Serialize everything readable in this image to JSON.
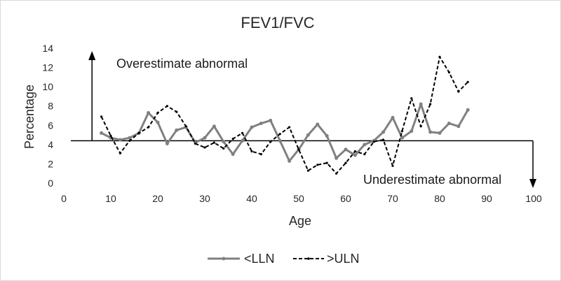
{
  "chart_data": {
    "type": "line",
    "title": "FEV1/FVC",
    "xlabel": "Age",
    "ylabel": "Percentage",
    "xlim": [
      0,
      100
    ],
    "ylim": [
      0,
      14
    ],
    "xticks": [
      0,
      10,
      20,
      30,
      40,
      50,
      60,
      70,
      80,
      90,
      100
    ],
    "yticks": [
      0,
      2,
      4,
      6,
      8,
      10,
      12,
      14
    ],
    "grid": false,
    "legend_position": "bottom",
    "reference_line": 4.4,
    "annotations": [
      {
        "text": "Overestimate abnormal",
        "arrow": "up"
      },
      {
        "text": "Underestimate abnormal",
        "arrow": "down"
      }
    ],
    "series": [
      {
        "name": "<LLN",
        "style": "solid",
        "color": "#808080",
        "x": [
          8,
          10,
          12,
          14,
          16,
          18,
          20,
          22,
          24,
          26,
          28,
          30,
          32,
          34,
          36,
          38,
          40,
          42,
          44,
          46,
          48,
          50,
          52,
          54,
          56,
          58,
          60,
          62,
          64,
          66,
          68,
          70,
          72,
          74,
          76,
          78,
          80,
          82,
          84,
          86
        ],
        "y": [
          5.2,
          4.7,
          4.5,
          4.7,
          5.2,
          7.3,
          6.3,
          4.1,
          5.5,
          5.8,
          4.2,
          4.7,
          5.9,
          4.3,
          3.0,
          4.4,
          5.8,
          6.2,
          6.5,
          4.4,
          2.3,
          3.5,
          5.0,
          6.1,
          4.9,
          2.6,
          3.5,
          2.9,
          4.0,
          4.4,
          5.3,
          6.8,
          4.7,
          5.4,
          8.2,
          5.3,
          5.2,
          6.2,
          5.9,
          7.6
        ]
      },
      {
        "name": ">ULN",
        "style": "dashed",
        "color": "#000000",
        "x": [
          8,
          10,
          12,
          14,
          16,
          18,
          20,
          22,
          24,
          26,
          28,
          30,
          32,
          34,
          36,
          38,
          40,
          42,
          44,
          46,
          48,
          50,
          52,
          54,
          56,
          58,
          60,
          62,
          64,
          66,
          68,
          70,
          72,
          74,
          76,
          78,
          80,
          82,
          84,
          86
        ],
        "y": [
          6.9,
          4.9,
          3.1,
          4.4,
          5.2,
          5.8,
          7.3,
          8.0,
          7.4,
          5.9,
          4.1,
          3.7,
          4.2,
          3.6,
          4.6,
          5.2,
          3.3,
          3.0,
          4.3,
          5.1,
          5.8,
          3.5,
          1.3,
          1.9,
          2.1,
          1.0,
          2.1,
          3.3,
          3.0,
          4.3,
          4.5,
          1.8,
          5.4,
          8.8,
          5.9,
          8.2,
          13.1,
          11.5,
          9.5,
          10.5
        ]
      }
    ]
  }
}
